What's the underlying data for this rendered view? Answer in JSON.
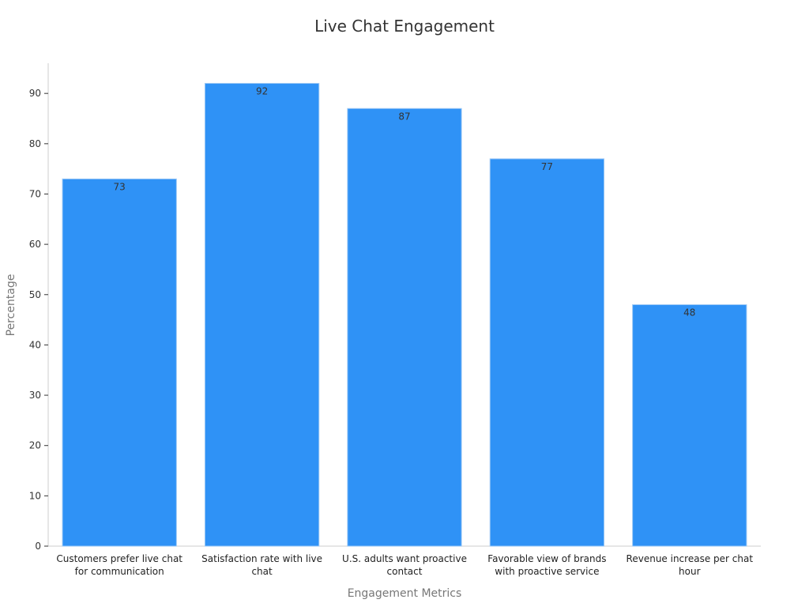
{
  "chart_data": {
    "type": "bar",
    "title": "Live Chat Engagement",
    "xlabel": "Engagement Metrics",
    "ylabel": "Percentage",
    "categories": [
      [
        "Customers prefer live chat",
        "for communication"
      ],
      [
        "Satisfaction rate with live",
        "chat"
      ],
      [
        "U.S. adults want proactive",
        "contact"
      ],
      [
        "Favorable view of brands",
        "with proactive service"
      ],
      [
        "Revenue increase per chat",
        "hour"
      ]
    ],
    "values": [
      73,
      92,
      87,
      77,
      48
    ],
    "ylim": [
      0,
      96
    ],
    "yticks": [
      0,
      10,
      20,
      30,
      40,
      50,
      60,
      70,
      80,
      90
    ],
    "grid": false,
    "legend": "none",
    "bar_color": "#2f92f6"
  }
}
